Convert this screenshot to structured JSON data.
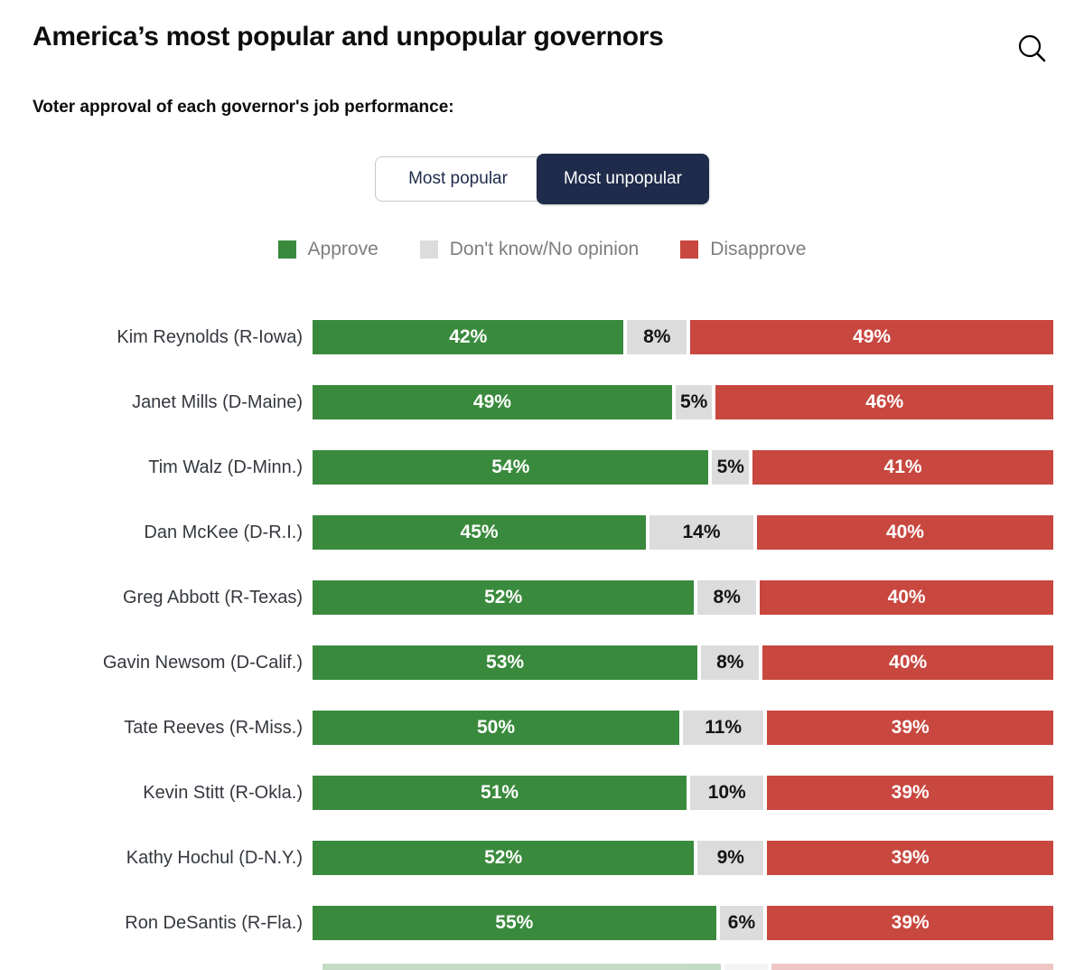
{
  "page": {
    "title": "America’s most popular and unpopular governors",
    "subtitle": "Voter approval of each governor's job performance:",
    "icons": {
      "search": "magnifying-glass"
    }
  },
  "tabs": [
    {
      "label": "Most popular",
      "selected": false
    },
    {
      "label": "Most unpopular",
      "selected": true
    }
  ],
  "legend": [
    {
      "label": "Approve",
      "color": "#3a8a3d"
    },
    {
      "label": "Don't know/No opinion",
      "color": "#dcdcdc"
    },
    {
      "label": "Disapprove",
      "color": "#c8473f"
    }
  ],
  "colors": {
    "approve": "#3a8a3d",
    "dont_know": "#dcdcdc",
    "disapprove": "#c8473f",
    "tab_selected_bg": "#1f2b4a",
    "value_text_on_color": "#ffffff",
    "value_text_on_gray": "#141414"
  },
  "chart_data": {
    "type": "bar",
    "orientation": "horizontal",
    "stacked": true,
    "value_suffix": "%",
    "xlim": [
      0,
      100
    ],
    "legend_position": "top-center",
    "categories": [
      "Kim Reynolds (R-Iowa)",
      "Janet Mills (D-Maine)",
      "Tim Walz (D-Minn.)",
      "Dan McKee (D-R.I.)",
      "Greg Abbott (R-Texas)",
      "Gavin Newsom (D-Calif.)",
      "Tate Reeves (R-Miss.)",
      "Kevin Stitt (R-Okla.)",
      "Kathy Hochul (D-N.Y.)",
      "Ron DeSantis (R-Fla.)"
    ],
    "series": [
      {
        "name": "Approve",
        "color": "#3a8a3d",
        "values": [
          42,
          49,
          54,
          45,
          52,
          53,
          50,
          51,
          52,
          55
        ]
      },
      {
        "name": "Don't know/No opinion",
        "color": "#dcdcdc",
        "values": [
          8,
          5,
          5,
          14,
          8,
          8,
          11,
          10,
          9,
          6
        ]
      },
      {
        "name": "Disapprove",
        "color": "#c8473f",
        "values": [
          49,
          46,
          41,
          40,
          40,
          40,
          39,
          39,
          39,
          39
        ]
      }
    ],
    "partial_next_row": {
      "approve": 55,
      "dont_know": 6,
      "disapprove": 39
    }
  }
}
